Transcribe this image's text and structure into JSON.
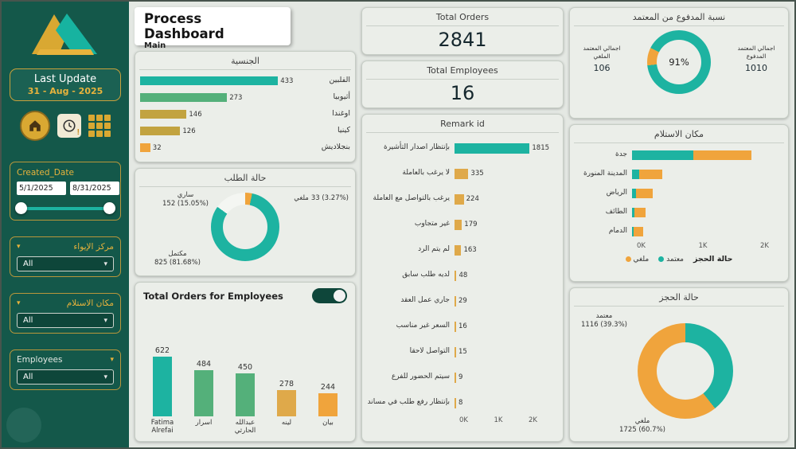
{
  "header": {
    "title": "Process Dashboard",
    "subtitle": "Main"
  },
  "sidebar": {
    "last_update_label": "Last Update",
    "last_update_value": "31 - Aug - 2025",
    "icons": [
      "home-icon",
      "clock-alert-icon",
      "grid-icon"
    ],
    "created_date": {
      "label": "Created_Date",
      "start": "5/1/2025",
      "end": "8/31/2025"
    },
    "filters": [
      {
        "label": "مركز الإيواء",
        "value": "All"
      },
      {
        "label": "مكان الاستلام",
        "value": "All"
      },
      {
        "label": "Employees",
        "value": "All"
      }
    ]
  },
  "kpis": {
    "orders": {
      "label": "Total Orders",
      "value": "2841"
    },
    "employees": {
      "label": "Total Employees",
      "value": "16"
    }
  },
  "chart_data": {
    "nationality": {
      "type": "bar",
      "title": "الجنسية",
      "categories": [
        "الفلبين",
        "أثيوبيا",
        "اوغندا",
        "كينيا",
        "بنجلاديش"
      ],
      "values": [
        433,
        273,
        146,
        126,
        32
      ],
      "colors": [
        "#1db3a1",
        "#54b07a",
        "#c2a340",
        "#c2a340",
        "#f0a43c"
      ],
      "max": 520
    },
    "order_status": {
      "type": "pie",
      "title": "حالة الطلب",
      "slices": [
        {
          "name": "ملغي",
          "value": 33,
          "pct": "3.27%",
          "pct_num": 3.27,
          "color": "#f0a43c",
          "detail": "33 (3.27%)"
        },
        {
          "name": "مكتمل",
          "value": 825,
          "pct": "81.68%",
          "pct_num": 81.68,
          "color": "#1db3a1",
          "detail": "825 (81.68%)"
        },
        {
          "name": "ساري",
          "value": 152,
          "pct": "15.05%",
          "pct_num": 15.05,
          "color": "#f4f6f2",
          "detail": "152 (15.05%)"
        }
      ],
      "from_deg": 0
    },
    "employee_orders": {
      "type": "bar",
      "title": "Total Orders for Employees",
      "categories": [
        "Fatima Alrefai",
        "اسرار",
        "عبدالله الحارثي",
        "لينه",
        "بيان"
      ],
      "values": [
        622,
        484,
        450,
        278,
        244
      ],
      "colors": [
        "#1db3a1",
        "#54b07a",
        "#54b07a",
        "#dfa94a",
        "#f0a43c"
      ],
      "max": 650
    },
    "remarks": {
      "type": "bar",
      "title": "Remark id",
      "categories": [
        "بإنتظار اصدار التأشيرة",
        "لا يرغب بالعاملة",
        "يرغب بالتواصل مع العاملة",
        "غير متجاوب",
        "لم يتم الرد",
        "لديه طلب سابق",
        "جاري عمل العقد",
        "السعر غير مناسب",
        "التواصل لاحقا",
        "سيتم الحضور للفرع",
        "بإنتظار رفع طلب في مساند"
      ],
      "values": [
        1815,
        335,
        224,
        179,
        163,
        48,
        29,
        16,
        15,
        9,
        8
      ],
      "colors": [
        "#1db3a1",
        "#dfa94a",
        "#dfa94a",
        "#dfa94a",
        "#dfa94a",
        "#dfa94a",
        "#dfa94a",
        "#dfa94a",
        "#dfa94a",
        "#dfa94a",
        "#dfa94a"
      ],
      "max": 2000,
      "x_ticks": [
        "0K",
        "1K",
        "2K"
      ]
    },
    "paid_ratio": {
      "type": "donut",
      "title": "نسبة المدفوع من المعتمد",
      "center_label": "91%",
      "slices": [
        {
          "name": "ملغي",
          "pct_num": 9,
          "color": "#f0a43c"
        },
        {
          "name": "مدفوع",
          "pct_num": 91,
          "color": "#1db3a1"
        }
      ],
      "from_deg": 264,
      "left": {
        "label": "اجمالي المعتمد الملغي",
        "value": "106"
      },
      "right": {
        "label": "اجمالي المعتمد المدفوع",
        "value": "1010"
      }
    },
    "pickup_location": {
      "type": "stacked_bar",
      "title": "مكان الاستلام",
      "categories": [
        "جدة",
        "المدينة المنورة",
        "الرياض",
        "الطائف",
        "الدمام"
      ],
      "series": [
        {
          "name": "معتمد",
          "color": "#1db3a1",
          "values": [
            900,
            110,
            60,
            30,
            16
          ]
        },
        {
          "name": "ملغي",
          "color": "#f0a43c",
          "values": [
            845,
            330,
            240,
            170,
            140
          ]
        }
      ],
      "legend_title": "حالة الحجز",
      "max": 2000,
      "x_ticks": [
        "0K",
        "1K",
        "2K"
      ]
    },
    "booking_status": {
      "type": "pie",
      "title": "حالة الحجز",
      "slices": [
        {
          "name": "معتمد",
          "value": 1116,
          "pct": "39.3%",
          "pct_num": 39.3,
          "color": "#1db3a1",
          "detail": "1116 (39.3%)"
        },
        {
          "name": "ملغي",
          "value": 1725,
          "pct": "60.7%",
          "pct_num": 60.7,
          "color": "#f0a43c",
          "detail": "1725 (60.7%)"
        }
      ],
      "from_deg": 0
    }
  }
}
